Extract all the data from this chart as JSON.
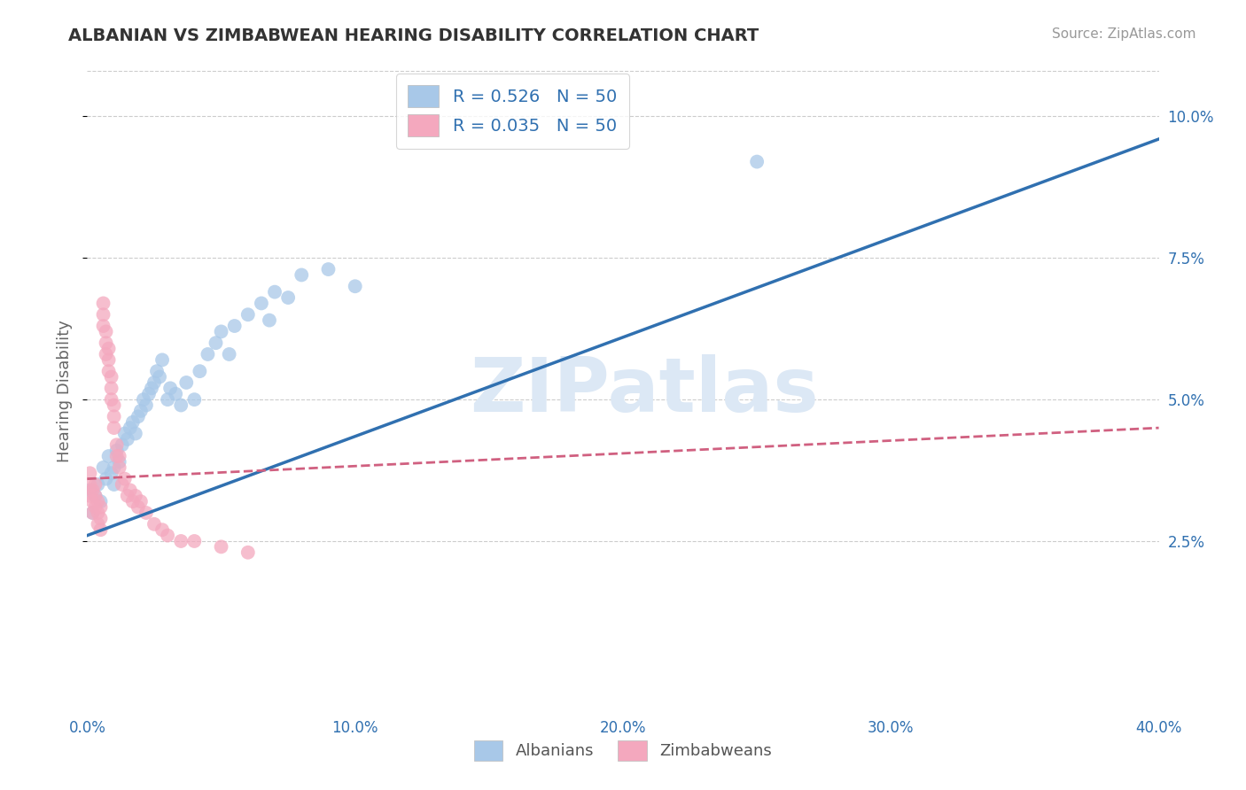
{
  "title": "ALBANIAN VS ZIMBABWEAN HEARING DISABILITY CORRELATION CHART",
  "source": "Source: ZipAtlas.com",
  "ylabel": "Hearing Disability",
  "xlim": [
    0.0,
    0.4
  ],
  "ylim": [
    -0.005,
    0.108
  ],
  "xticks": [
    0.0,
    0.1,
    0.2,
    0.3,
    0.4
  ],
  "yticks": [
    0.025,
    0.05,
    0.075,
    0.1
  ],
  "R_albanian": 0.526,
  "R_zimbabwean": 0.035,
  "N_albanian": 50,
  "N_zimbabwean": 50,
  "blue_scatter_color": "#a8c8e8",
  "pink_scatter_color": "#f4a8be",
  "blue_line_color": "#3070b0",
  "pink_line_color": "#d06080",
  "watermark_color": "#dce8f5",
  "background_color": "#ffffff",
  "grid_color": "#cccccc",
  "tick_color": "#3070b0",
  "albanian_x": [
    0.001,
    0.002,
    0.003,
    0.004,
    0.005,
    0.006,
    0.007,
    0.008,
    0.009,
    0.01,
    0.01,
    0.011,
    0.012,
    0.013,
    0.014,
    0.015,
    0.016,
    0.017,
    0.018,
    0.019,
    0.02,
    0.021,
    0.022,
    0.023,
    0.024,
    0.025,
    0.026,
    0.027,
    0.028,
    0.03,
    0.031,
    0.033,
    0.035,
    0.037,
    0.04,
    0.042,
    0.045,
    0.048,
    0.05,
    0.053,
    0.055,
    0.06,
    0.065,
    0.068,
    0.07,
    0.075,
    0.08,
    0.09,
    0.1,
    0.25
  ],
  "albanian_y": [
    0.034,
    0.03,
    0.033,
    0.035,
    0.032,
    0.038,
    0.036,
    0.04,
    0.037,
    0.035,
    0.038,
    0.041,
    0.039,
    0.042,
    0.044,
    0.043,
    0.045,
    0.046,
    0.044,
    0.047,
    0.048,
    0.05,
    0.049,
    0.051,
    0.052,
    0.053,
    0.055,
    0.054,
    0.057,
    0.05,
    0.052,
    0.051,
    0.049,
    0.053,
    0.05,
    0.055,
    0.058,
    0.06,
    0.062,
    0.058,
    0.063,
    0.065,
    0.067,
    0.064,
    0.069,
    0.068,
    0.072,
    0.073,
    0.07,
    0.092
  ],
  "zimbabwean_x": [
    0.001,
    0.001,
    0.001,
    0.002,
    0.002,
    0.002,
    0.003,
    0.003,
    0.003,
    0.004,
    0.004,
    0.004,
    0.005,
    0.005,
    0.005,
    0.006,
    0.006,
    0.006,
    0.007,
    0.007,
    0.007,
    0.008,
    0.008,
    0.008,
    0.009,
    0.009,
    0.009,
    0.01,
    0.01,
    0.01,
    0.011,
    0.011,
    0.012,
    0.012,
    0.013,
    0.014,
    0.015,
    0.016,
    0.017,
    0.018,
    0.019,
    0.02,
    0.022,
    0.025,
    0.028,
    0.03,
    0.035,
    0.04,
    0.05,
    0.06
  ],
  "zimbabwean_y": [
    0.033,
    0.035,
    0.037,
    0.03,
    0.032,
    0.034,
    0.031,
    0.033,
    0.035,
    0.028,
    0.03,
    0.032,
    0.027,
    0.029,
    0.031,
    0.063,
    0.065,
    0.067,
    0.058,
    0.06,
    0.062,
    0.055,
    0.057,
    0.059,
    0.05,
    0.052,
    0.054,
    0.045,
    0.047,
    0.049,
    0.04,
    0.042,
    0.038,
    0.04,
    0.035,
    0.036,
    0.033,
    0.034,
    0.032,
    0.033,
    0.031,
    0.032,
    0.03,
    0.028,
    0.027,
    0.026,
    0.025,
    0.025,
    0.024,
    0.023
  ],
  "blue_line_x0": 0.0,
  "blue_line_y0": 0.026,
  "blue_line_x1": 0.4,
  "blue_line_y1": 0.096,
  "pink_line_x0": 0.0,
  "pink_line_y0": 0.036,
  "pink_line_x1": 0.4,
  "pink_line_y1": 0.045
}
